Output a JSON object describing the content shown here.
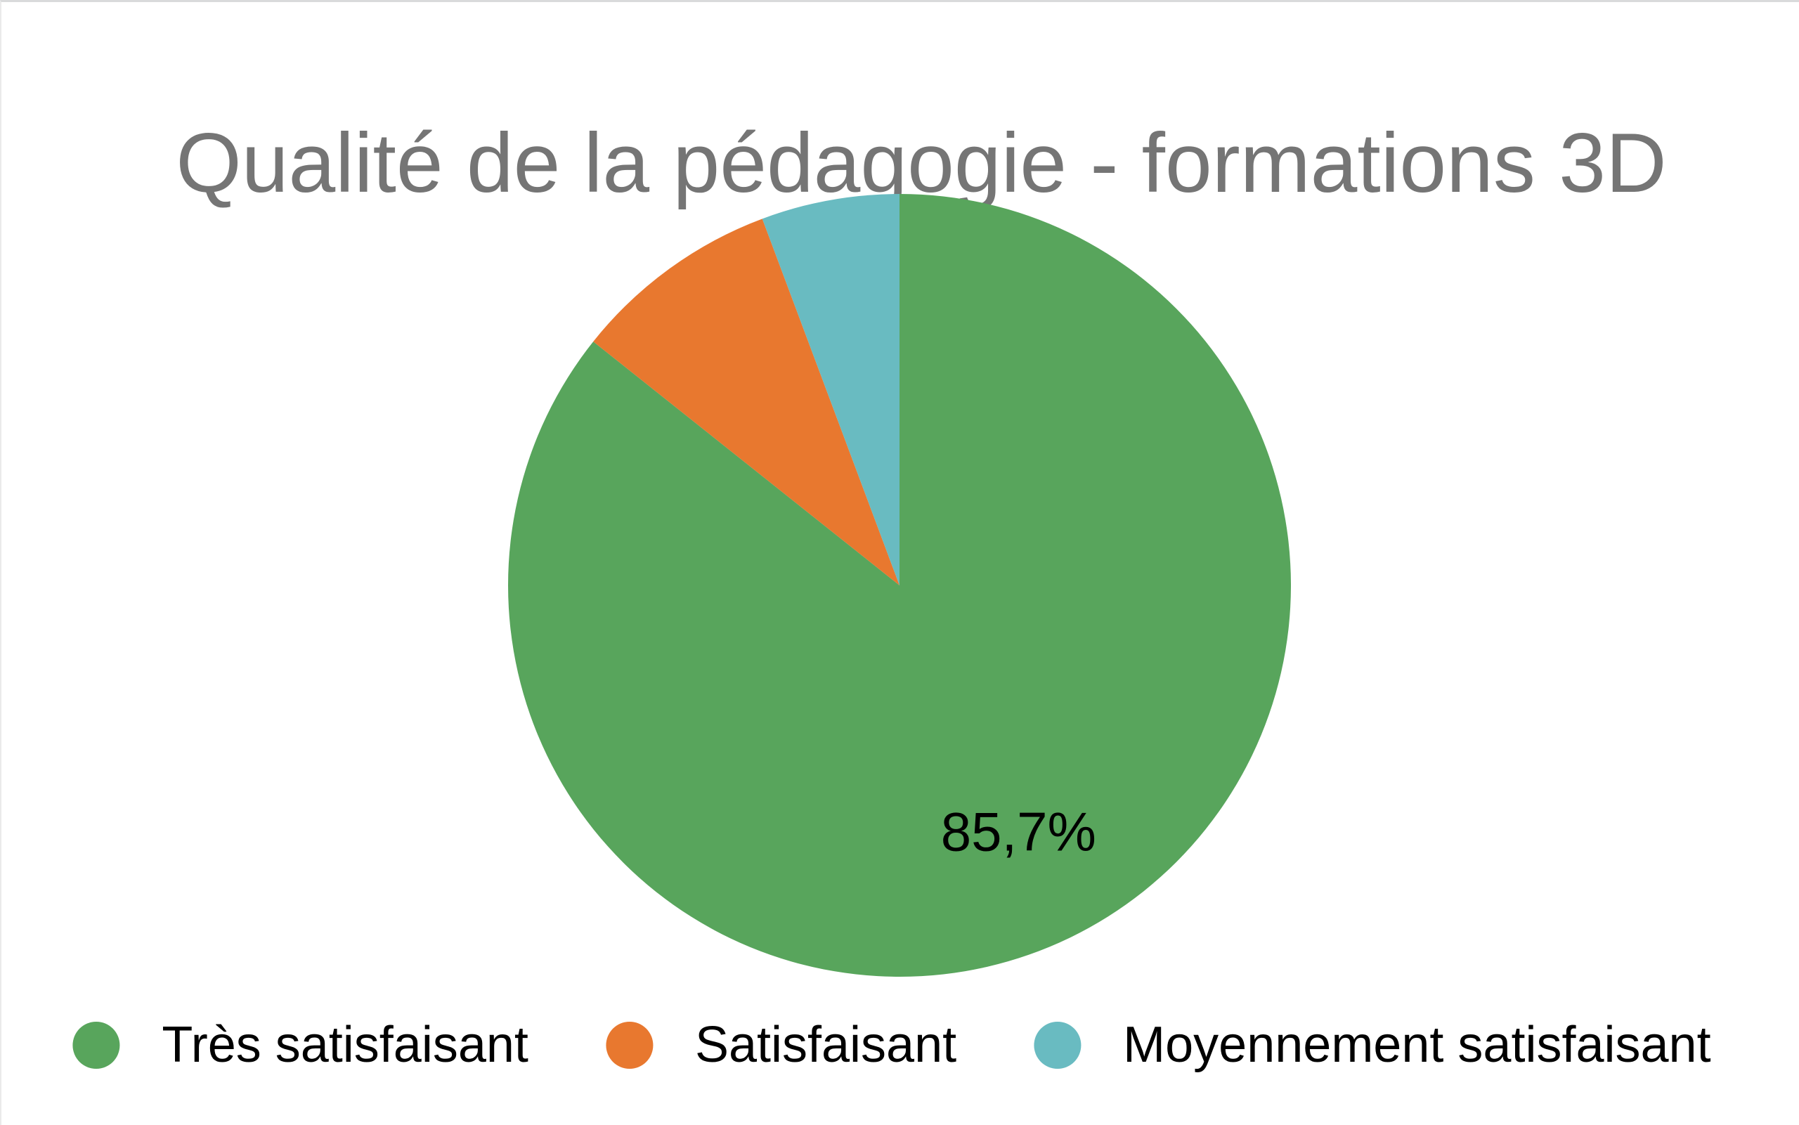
{
  "page": {
    "background": "#ffffff",
    "border_top_color": "#d9dadb",
    "border_left_color": "#eaeaea"
  },
  "chart": {
    "title": "Qualité de la pédagogie - formations 3D",
    "title_color": "#757575",
    "slice_label": "85,7%",
    "slice_label_color": "#000000"
  },
  "chart_data": {
    "type": "pie",
    "title": "Qualité de la pédagogie - formations 3D",
    "categories": [
      "Très satisfaisant",
      "Satisfaisant",
      "Moyennement satisfaisant"
    ],
    "values": [
      85.7,
      8.6,
      5.7
    ],
    "unit": "%",
    "colors": [
      "#58a55c",
      "#e8782f",
      "#69bbc1"
    ],
    "start_angle_deg": 0,
    "direction": "clockwise",
    "visible_slice_labels": [
      "85,7%",
      "",
      ""
    ],
    "label_radius_fraction": 0.7,
    "legend_position": "bottom",
    "legend_marker": "circle"
  }
}
